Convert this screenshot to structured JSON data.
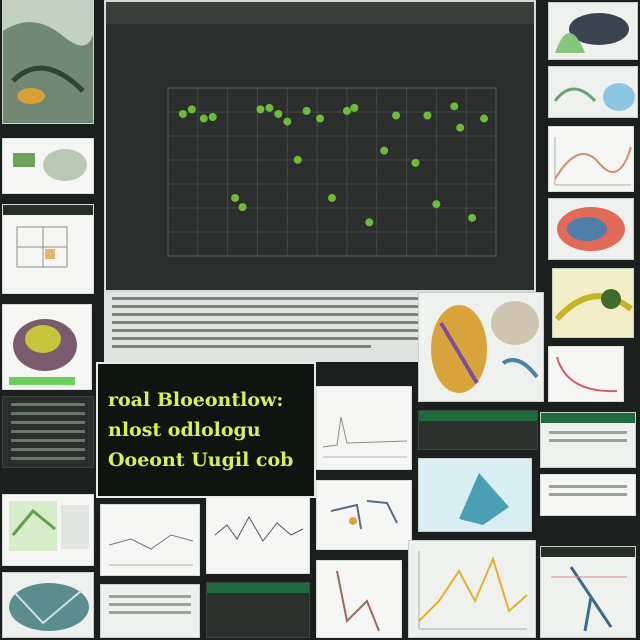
{
  "banner_text": {
    "line1": "roal Bloeontlow:",
    "line2": "nlost odlologu",
    "line3": "Ooeont Uugil cob"
  },
  "chart_data": {
    "type": "scatter",
    "title": "",
    "xlabel": "",
    "ylabel": "",
    "xlim": [
      0,
      22
    ],
    "ylim": [
      0,
      11
    ],
    "grid": true,
    "points": [
      {
        "x": 1,
        "y": 9.3
      },
      {
        "x": 1.6,
        "y": 9.6
      },
      {
        "x": 2.4,
        "y": 9.0
      },
      {
        "x": 3,
        "y": 9.1
      },
      {
        "x": 4.5,
        "y": 3.8
      },
      {
        "x": 5,
        "y": 3.2
      },
      {
        "x": 6.2,
        "y": 9.6
      },
      {
        "x": 6.8,
        "y": 9.7
      },
      {
        "x": 7.4,
        "y": 9.3
      },
      {
        "x": 8,
        "y": 8.8
      },
      {
        "x": 8.7,
        "y": 6.3
      },
      {
        "x": 9.3,
        "y": 9.5
      },
      {
        "x": 10.2,
        "y": 9.0
      },
      {
        "x": 11,
        "y": 3.8
      },
      {
        "x": 12,
        "y": 9.5
      },
      {
        "x": 12.5,
        "y": 9.7
      },
      {
        "x": 13.5,
        "y": 2.2
      },
      {
        "x": 14.5,
        "y": 6.9
      },
      {
        "x": 15.3,
        "y": 9.2
      },
      {
        "x": 16.6,
        "y": 6.1
      },
      {
        "x": 17.4,
        "y": 9.2
      },
      {
        "x": 18,
        "y": 3.4
      },
      {
        "x": 19.2,
        "y": 9.8
      },
      {
        "x": 19.6,
        "y": 8.4
      },
      {
        "x": 20.4,
        "y": 2.5
      },
      {
        "x": 21.2,
        "y": 9.0
      }
    ]
  },
  "colors": {
    "point": "#6dbb3a",
    "banner_text": "#d7ef58",
    "plot_bg": "#2b2e2c"
  }
}
